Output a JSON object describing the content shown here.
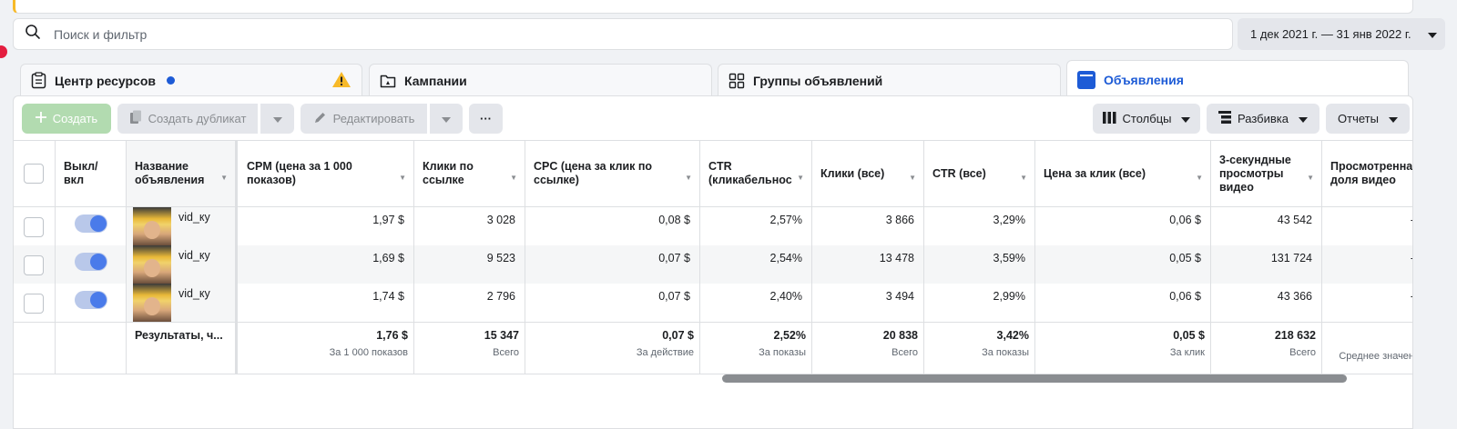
{
  "search": {
    "placeholder": "Поиск и фильтр"
  },
  "date_range": {
    "label": "1 дек 2021 г. — 31 янв 2022 г."
  },
  "tabs": {
    "resources": "Центр ресурсов",
    "campaigns": "Кампании",
    "adsets": "Группы объявлений",
    "ads": "Объявления"
  },
  "toolbar": {
    "create": "Создать",
    "duplicate": "Создать дубликат",
    "edit": "Редактировать",
    "more": "···",
    "columns": "Столбцы",
    "breakdown": "Разбивка",
    "reports": "Отчеты"
  },
  "columns": {
    "toggle": "Выкл/\nвкл",
    "name": "Название\nобъявления",
    "cpm": "CPM (цена за 1 000\nпоказов)",
    "link_clicks": "Клики по\nссылке",
    "cpc": "CPC (цена за клик по\nссылке)",
    "ctr": "CTR\n(кликабельнос",
    "clicks_all": "Клики (все)",
    "ctr_all": "CTR (все)",
    "cpc_all": "Цена за клик (все)",
    "views3s": "3-секундные\nпросмотры\nвидео",
    "viewed_share": "Просмотренна\nдоля видео"
  },
  "rows": [
    {
      "name": "vid_ку",
      "cpm": "1,97 $",
      "link_clicks": "3 028",
      "cpc": "0,08 $",
      "ctr": "2,57%",
      "clicks_all": "3 866",
      "ctr_all": "3,29%",
      "cpc_all": "0,06 $",
      "views3s": "43 542",
      "viewed_share": "-"
    },
    {
      "name": "vid_ку",
      "cpm": "1,69 $",
      "link_clicks": "9 523",
      "cpc": "0,07 $",
      "ctr": "2,54%",
      "clicks_all": "13 478",
      "ctr_all": "3,59%",
      "cpc_all": "0,05 $",
      "views3s": "131 724",
      "viewed_share": "-"
    },
    {
      "name": "vid_ку",
      "cpm": "1,74 $",
      "link_clicks": "2 796",
      "cpc": "0,07 $",
      "ctr": "2,40%",
      "clicks_all": "3 494",
      "ctr_all": "2,99%",
      "cpc_all": "0,06 $",
      "views3s": "43 366",
      "viewed_share": "-"
    }
  ],
  "totals": {
    "label": "Результаты, ч...",
    "cpm": {
      "value": "1,76 $",
      "sub": "За 1 000 показов"
    },
    "link_clicks": {
      "value": "15 347",
      "sub": "Всего"
    },
    "cpc": {
      "value": "0,07 $",
      "sub": "За действие"
    },
    "ctr": {
      "value": "2,52%",
      "sub": "За показы"
    },
    "clicks_all": {
      "value": "20 838",
      "sub": "Всего"
    },
    "ctr_all": {
      "value": "3,42%",
      "sub": "За показы"
    },
    "cpc_all": {
      "value": "0,05 $",
      "sub": "За клик"
    },
    "views3s": {
      "value": "218 632",
      "sub": "Всего"
    },
    "viewed_share": {
      "value": "",
      "sub": "Среднее значен"
    }
  },
  "colors": {
    "accent": "#1d5bd6",
    "create_button": "#b2dbb0",
    "toggle_on": "#4a7bea",
    "warning": "#f7b928"
  }
}
